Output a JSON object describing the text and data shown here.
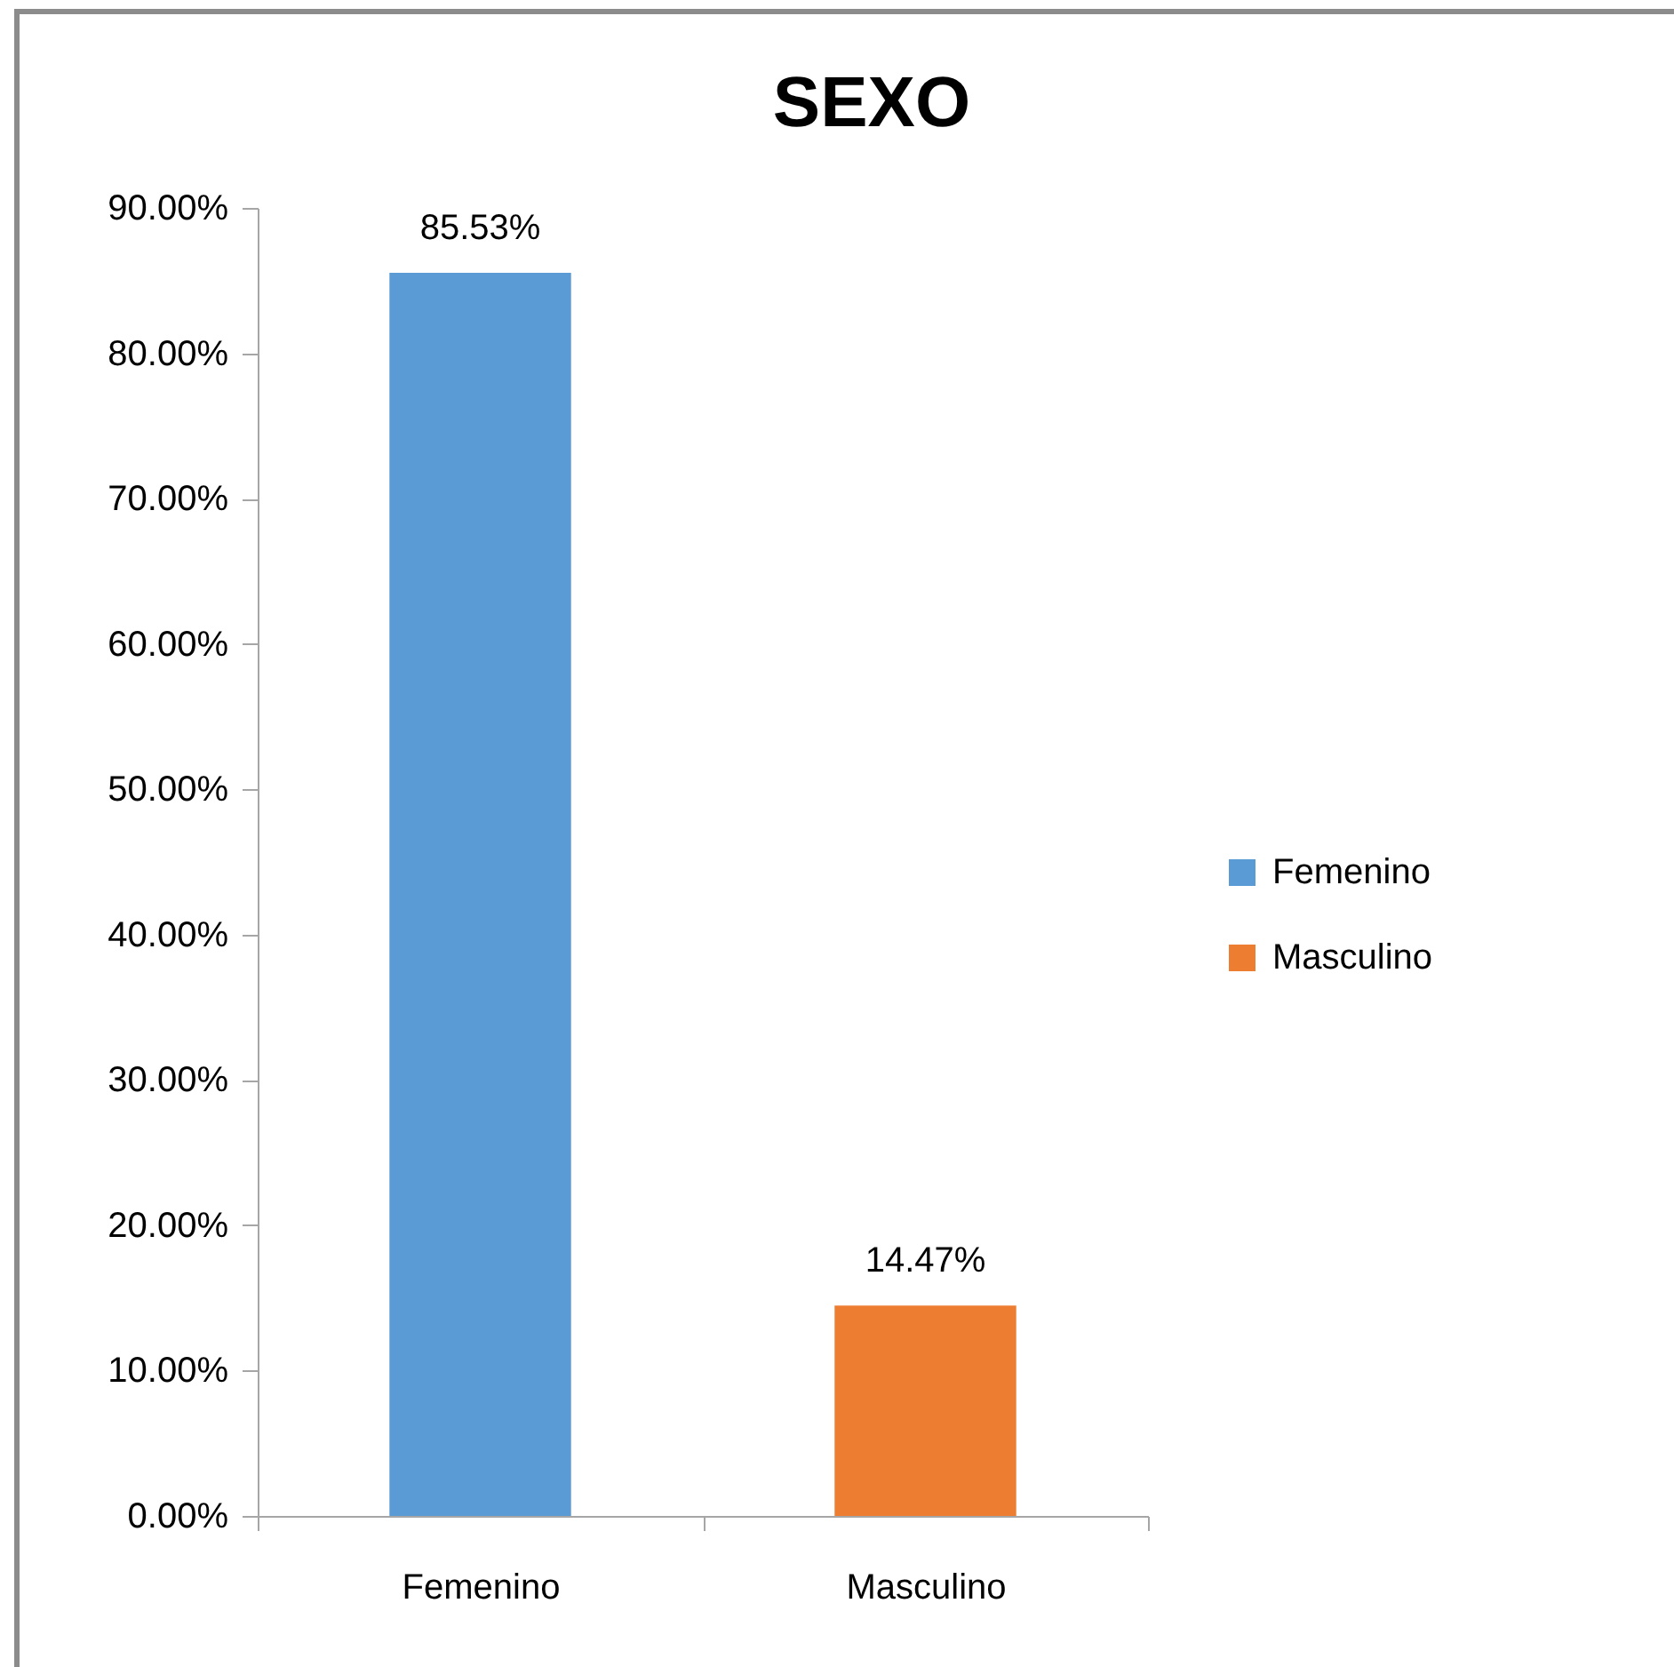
{
  "chart_data": {
    "type": "bar",
    "title": "SEXO",
    "categories": [
      "Femenino",
      "Masculino"
    ],
    "series": [
      {
        "name": "Femenino",
        "color": "#5b9bd5",
        "values": [
          85.53,
          null
        ],
        "value_labels": [
          "85.53%",
          null
        ]
      },
      {
        "name": "Masculino",
        "color": "#ed7d31",
        "values": [
          null,
          14.47
        ],
        "value_labels": [
          null,
          "14.47%"
        ]
      }
    ],
    "stacked": true,
    "ylim": [
      0,
      90
    ],
    "yticks": [
      {
        "value": 0,
        "label": "0.00%"
      },
      {
        "value": 10,
        "label": "10.00%"
      },
      {
        "value": 20,
        "label": "20.00%"
      },
      {
        "value": 30,
        "label": "30.00%"
      },
      {
        "value": 40,
        "label": "40.00%"
      },
      {
        "value": 50,
        "label": "50.00%"
      },
      {
        "value": 60,
        "label": "60.00%"
      },
      {
        "value": 70,
        "label": "70.00%"
      },
      {
        "value": 80,
        "label": "80.00%"
      },
      {
        "value": 90,
        "label": "90.00%"
      }
    ],
    "grid": false,
    "legend": "right"
  }
}
